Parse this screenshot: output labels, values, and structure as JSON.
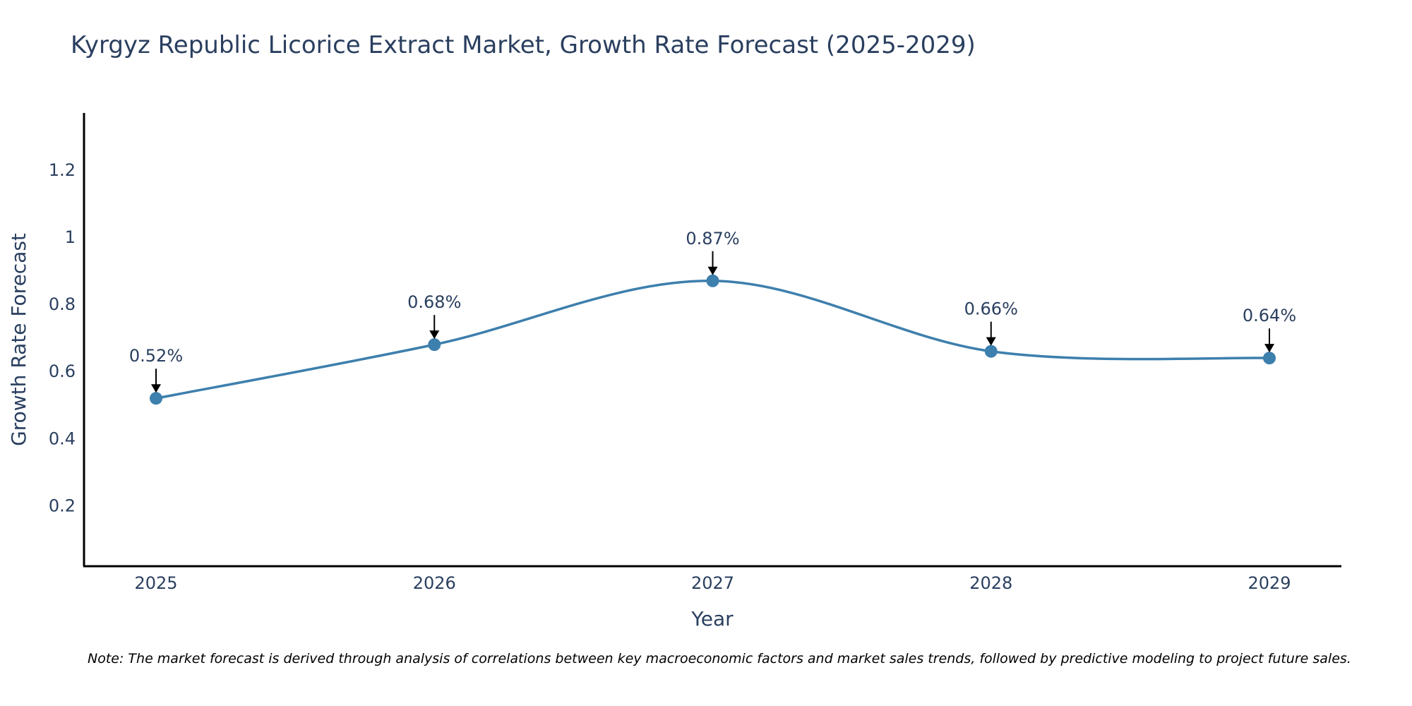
{
  "chart_data": {
    "type": "line",
    "title": "Kyrgyz Republic Licorice Extract Market, Growth Rate Forecast (2025-2029)",
    "xlabel": "Year",
    "ylabel": "Growth Rate Forecast",
    "categories": [
      "2025",
      "2026",
      "2027",
      "2028",
      "2029"
    ],
    "values": [
      0.52,
      0.68,
      0.87,
      0.66,
      0.64
    ],
    "data_labels": [
      "0.52%",
      "0.68%",
      "0.87%",
      "0.66%",
      "0.64%"
    ],
    "yticks": [
      "0.2",
      "0.4",
      "0.6",
      "0.8",
      "1",
      "1.2"
    ],
    "ytick_values": [
      0.2,
      0.4,
      0.6,
      0.8,
      1.0,
      1.2
    ],
    "ylim": [
      0.02,
      1.37
    ],
    "grid": false,
    "line_color": "#3d7fad",
    "marker_color": "#3d7fad"
  },
  "note": "Note: The market forecast is derived through analysis of correlations between key macroeconomic factors and market sales trends, followed by predictive modeling to project future sales."
}
